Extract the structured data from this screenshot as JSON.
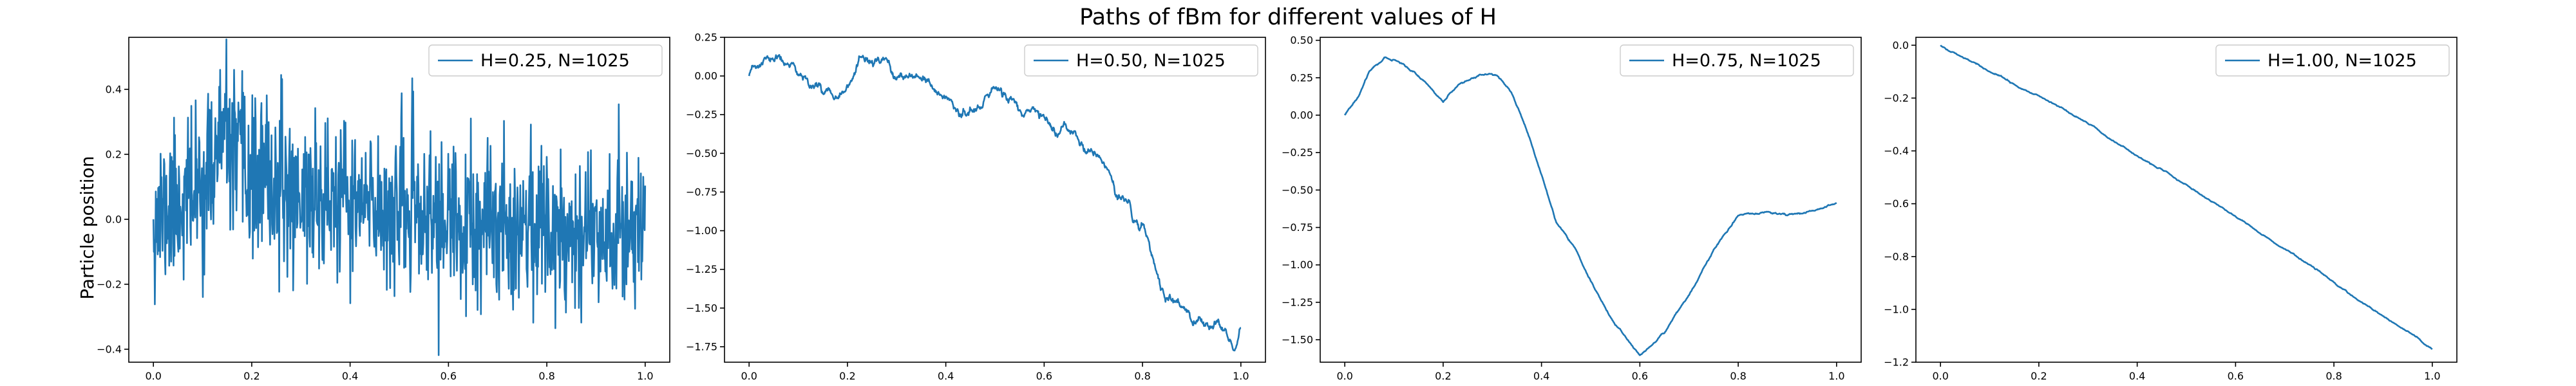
{
  "figure": {
    "title": "Paths of fBm for different values of H",
    "ylabel": "Particle position"
  },
  "colors": {
    "line": "#1f77b4",
    "axis": "#000000",
    "background": "#ffffff"
  },
  "chart_data": [
    {
      "type": "line",
      "series": [
        {
          "name": "H=0.25, N=1025",
          "values": []
        }
      ],
      "generator": {
        "kind": "rough",
        "seed": 11,
        "n": 1025
      },
      "x": {
        "range": [
          0,
          1
        ]
      },
      "xlim": [
        -0.05,
        1.05
      ],
      "ylim": [
        -0.44,
        0.56
      ],
      "xticks": [
        0.0,
        0.2,
        0.4,
        0.6,
        0.8,
        1.0
      ],
      "xtick_labels": [
        "0.0",
        "0.2",
        "0.4",
        "0.6",
        "0.8",
        "1.0"
      ],
      "yticks": [
        -0.4,
        -0.2,
        0.0,
        0.2,
        0.4
      ],
      "ytick_labels": [
        "−0.4",
        "−0.2",
        "0.0",
        "0.2",
        "0.4"
      ],
      "legend": "top-right",
      "grid": false,
      "keypoints": [
        [
          0.0,
          0.0
        ],
        [
          0.1,
          0.1
        ],
        [
          0.14,
          0.25
        ],
        [
          0.2,
          0.12
        ],
        [
          0.3,
          0.08
        ],
        [
          0.4,
          0.04
        ],
        [
          0.5,
          0.03
        ],
        [
          0.6,
          -0.01
        ],
        [
          0.66,
          -0.06
        ],
        [
          0.7,
          0.0
        ],
        [
          0.8,
          -0.02
        ],
        [
          0.9,
          -0.03
        ],
        [
          1.0,
          -0.02
        ]
      ],
      "noise_amplitude": 0.12
    },
    {
      "type": "line",
      "series": [
        {
          "name": "H=0.50, N=1025",
          "values": []
        }
      ],
      "generator": {
        "kind": "walk",
        "seed": 23,
        "n": 1025
      },
      "x": {
        "range": [
          0,
          1
        ]
      },
      "xlim": [
        -0.05,
        1.05
      ],
      "ylim": [
        -1.85,
        0.25
      ],
      "xticks": [
        0.0,
        0.2,
        0.4,
        0.6,
        0.8,
        1.0
      ],
      "xtick_labels": [
        "0.0",
        "0.2",
        "0.4",
        "0.6",
        "0.8",
        "1.0"
      ],
      "yticks": [
        -1.75,
        -1.5,
        -1.25,
        -1.0,
        -0.75,
        -0.5,
        -0.25,
        0.0,
        0.25
      ],
      "ytick_labels": [
        "−1.75",
        "−1.50",
        "−1.25",
        "−1.00",
        "−0.75",
        "−0.50",
        "−0.25",
        "0.00",
        "0.25"
      ],
      "legend": "top-right",
      "grid": false,
      "keypoints": [
        [
          0.0,
          0.0
        ],
        [
          0.03,
          0.08
        ],
        [
          0.06,
          0.1
        ],
        [
          0.1,
          0.0
        ],
        [
          0.17,
          -0.1
        ],
        [
          0.25,
          0.1
        ],
        [
          0.3,
          0.0
        ],
        [
          0.4,
          -0.15
        ],
        [
          0.45,
          -0.25
        ],
        [
          0.5,
          -0.1
        ],
        [
          0.55,
          -0.2
        ],
        [
          0.6,
          -0.3
        ],
        [
          0.7,
          -0.5
        ],
        [
          0.8,
          -1.0
        ],
        [
          0.85,
          -1.45
        ],
        [
          0.95,
          -1.65
        ],
        [
          0.99,
          -1.75
        ],
        [
          1.0,
          -1.6
        ]
      ],
      "noise_amplitude": 0.035
    },
    {
      "type": "line",
      "series": [
        {
          "name": "H=0.75, N=1025",
          "values": []
        }
      ],
      "generator": {
        "kind": "smooth",
        "seed": 37,
        "n": 1025
      },
      "x": {
        "range": [
          0,
          1
        ]
      },
      "xlim": [
        -0.05,
        1.05
      ],
      "ylim": [
        -1.65,
        0.52
      ],
      "xticks": [
        0.0,
        0.2,
        0.4,
        0.6,
        0.8,
        1.0
      ],
      "xtick_labels": [
        "0.0",
        "0.2",
        "0.4",
        "0.6",
        "0.8",
        "1.0"
      ],
      "yticks": [
        -1.5,
        -1.25,
        -1.0,
        -0.75,
        -0.5,
        -0.25,
        0.0,
        0.25,
        0.5
      ],
      "ytick_labels": [
        "−1.50",
        "−1.25",
        "−1.00",
        "−0.75",
        "−0.50",
        "−0.25",
        "0.00",
        "0.25",
        "0.50"
      ],
      "legend": "top-right",
      "grid": false,
      "keypoints": [
        [
          0.0,
          0.0
        ],
        [
          0.03,
          0.15
        ],
        [
          0.05,
          0.3
        ],
        [
          0.08,
          0.4
        ],
        [
          0.12,
          0.35
        ],
        [
          0.16,
          0.25
        ],
        [
          0.2,
          0.1
        ],
        [
          0.23,
          0.2
        ],
        [
          0.27,
          0.27
        ],
        [
          0.31,
          0.28
        ],
        [
          0.34,
          0.15
        ],
        [
          0.37,
          -0.1
        ],
        [
          0.4,
          -0.4
        ],
        [
          0.43,
          -0.72
        ],
        [
          0.47,
          -0.9
        ],
        [
          0.5,
          -1.1
        ],
        [
          0.55,
          -1.4
        ],
        [
          0.6,
          -1.6
        ],
        [
          0.65,
          -1.45
        ],
        [
          0.7,
          -1.2
        ],
        [
          0.75,
          -0.9
        ],
        [
          0.8,
          -0.66
        ],
        [
          0.85,
          -0.65
        ],
        [
          0.9,
          -0.68
        ],
        [
          0.95,
          -0.65
        ],
        [
          1.0,
          -0.58
        ]
      ],
      "noise_amplitude": 0.012
    },
    {
      "type": "line",
      "series": [
        {
          "name": "H=1.00, N=1025",
          "values": []
        }
      ],
      "generator": {
        "kind": "trend",
        "seed": 41,
        "n": 1025
      },
      "x": {
        "range": [
          0,
          1
        ]
      },
      "xlim": [
        -0.05,
        1.05
      ],
      "ylim": [
        -1.2,
        0.03
      ],
      "xticks": [
        0.0,
        0.2,
        0.4,
        0.6,
        0.8,
        1.0
      ],
      "xtick_labels": [
        "0.0",
        "0.2",
        "0.4",
        "0.6",
        "0.8",
        "1.0"
      ],
      "yticks": [
        -1.2,
        -1.0,
        -0.8,
        -0.6,
        -0.4,
        -0.2,
        0.0
      ],
      "ytick_labels": [
        "−1.2",
        "−1.0",
        "−0.8",
        "−0.6",
        "−0.4",
        "−0.2",
        "0.0"
      ],
      "legend": "top-right",
      "grid": false,
      "keypoints": [
        [
          0.0,
          0.0
        ],
        [
          0.25,
          -0.24
        ],
        [
          0.5,
          -0.53
        ],
        [
          0.75,
          -0.83
        ],
        [
          1.0,
          -1.15
        ]
      ],
      "noise_amplitude": 0.004
    }
  ]
}
